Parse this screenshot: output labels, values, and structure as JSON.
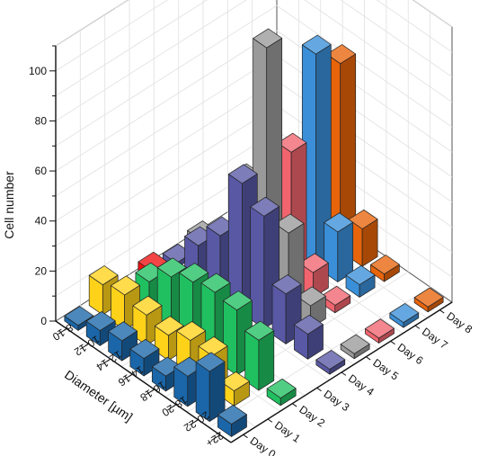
{
  "chart_data": {
    "type": "bar3d",
    "xlabel": "Diameter [µm]",
    "ylabel": "",
    "zlabel": "Cell number",
    "x_categories": [
      "8-10",
      "10-12",
      "12-14",
      "14-16",
      "16-18",
      "18-20",
      "20-22",
      "22+"
    ],
    "y_categories": [
      "Day 0",
      "Day 1",
      "Day 2",
      "Day 3",
      "Day 4",
      "Day 5",
      "Day 6",
      "Day 7",
      "Day 8"
    ],
    "zlim": [
      0,
      110
    ],
    "z_ticks": [
      0,
      20,
      40,
      60,
      80,
      100
    ],
    "grid": true,
    "series": [
      {
        "color": "#1a66a8",
        "values": [
          2,
          6,
          8,
          7,
          6,
          12,
          20,
          5
        ]
      },
      {
        "color": "#ffd21a",
        "values": [
          12,
          14,
          12,
          10,
          14,
          14,
          6,
          0
        ]
      },
      {
        "color": "#20c060",
        "values": [
          0,
          13,
          21,
          25,
          27,
          26,
          20,
          3
        ]
      },
      {
        "color": "#ef1010",
        "values": [
          5,
          7,
          7,
          0,
          0,
          0,
          0,
          0
        ]
      },
      {
        "color": "#5858a5",
        "values": [
          2,
          15,
          25,
          52,
          45,
          20,
          10,
          2
        ]
      },
      {
        "color": "#9a9a9a",
        "values": [
          5,
          8,
          40,
          100,
          32,
          9,
          0,
          2
        ]
      },
      {
        "color": "#f0646e",
        "values": [
          0,
          0,
          16,
          52,
          10,
          3,
          0,
          2
        ]
      },
      {
        "color": "#3a8fd8",
        "values": [
          0,
          0,
          6,
          85,
          20,
          5,
          0,
          2
        ]
      },
      {
        "color": "#e8640a",
        "values": [
          0,
          0,
          4,
          75,
          15,
          3,
          0,
          2
        ]
      }
    ]
  }
}
